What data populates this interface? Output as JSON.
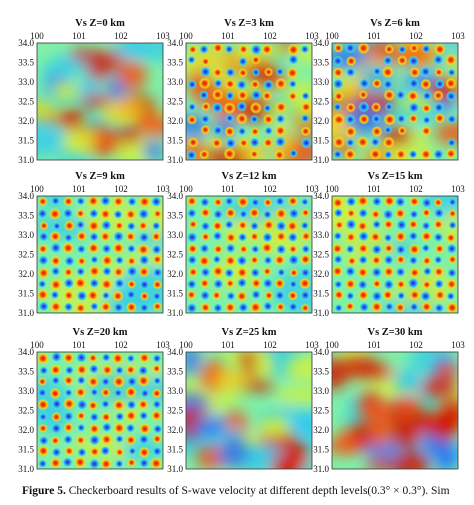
{
  "caption": {
    "label": "Figure 5.",
    "text": "Checkerboard results of S-wave velocity at different depth levels(0.3° × 0.3°). Sim"
  },
  "palette": [
    "#1515c8",
    "#2f6ff0",
    "#2ec9f0",
    "#7ff0a8",
    "#d6f03a",
    "#fbcc16",
    "#f5520e",
    "#d21405"
  ],
  "chart_data": [
    {
      "type": "heatmap",
      "title": "Vs Z=0 km",
      "x_ticks": [
        "100",
        "101",
        "102",
        "103"
      ],
      "y_ticks": [
        "34.0",
        "33.5",
        "33.0",
        "32.5",
        "32.0",
        "31.5",
        "31.0"
      ],
      "pattern": "smeared"
    },
    {
      "type": "heatmap",
      "title": "Vs Z=3 km",
      "x_ticks": [
        "100",
        "101",
        "102",
        "103"
      ],
      "y_ticks": [
        "34.0",
        "33.5",
        "33.0",
        "32.5",
        "32.0",
        "31.5",
        "31.0"
      ],
      "pattern": "partial checkerboard"
    },
    {
      "type": "heatmap",
      "title": "Vs Z=6 km",
      "x_ticks": [
        "100",
        "101",
        "102",
        "103"
      ],
      "y_ticks": [
        "34.0",
        "33.5",
        "33.0",
        "32.5",
        "32.0",
        "31.5",
        "31.0"
      ],
      "pattern": "partial checkerboard"
    },
    {
      "type": "heatmap",
      "title": "Vs Z=9 km",
      "x_ticks": [
        "100",
        "101",
        "102",
        "103"
      ],
      "y_ticks": [
        "34.0",
        "33.5",
        "33.0",
        "32.5",
        "32.0",
        "31.5",
        "31.0"
      ],
      "pattern": "checkerboard"
    },
    {
      "type": "heatmap",
      "title": "Vs Z=12 km",
      "x_ticks": [
        "100",
        "101",
        "102",
        "103"
      ],
      "y_ticks": [
        "34.0",
        "33.5",
        "33.0",
        "32.5",
        "32.0",
        "31.5",
        "31.0"
      ],
      "pattern": "checkerboard"
    },
    {
      "type": "heatmap",
      "title": "Vs Z=15 km",
      "x_ticks": [
        "100",
        "101",
        "102",
        "103"
      ],
      "y_ticks": [
        "34.0",
        "33.5",
        "33.0",
        "32.5",
        "32.0",
        "31.5",
        "31.0"
      ],
      "pattern": "checkerboard"
    },
    {
      "type": "heatmap",
      "title": "Vs Z=20 km",
      "x_ticks": [
        "100",
        "101",
        "102",
        "103"
      ],
      "y_ticks": [
        "34.0",
        "33.5",
        "33.0",
        "32.5",
        "32.0",
        "31.5",
        "31.0"
      ],
      "pattern": "checkerboard"
    },
    {
      "type": "heatmap",
      "title": "Vs Z=25 km",
      "x_ticks": [
        "100",
        "101",
        "102",
        "103"
      ],
      "y_ticks": [
        "34.0",
        "33.5",
        "33.0",
        "32.5",
        "32.0",
        "31.5",
        "31.0"
      ],
      "pattern": "smeared"
    },
    {
      "type": "heatmap",
      "title": "Vs Z=30 km",
      "x_ticks": [
        "100",
        "101",
        "102",
        "103"
      ],
      "y_ticks": [
        "34.0",
        "33.5",
        "33.0",
        "32.5",
        "32.0",
        "31.5",
        "31.0"
      ],
      "pattern": "smeared"
    }
  ]
}
